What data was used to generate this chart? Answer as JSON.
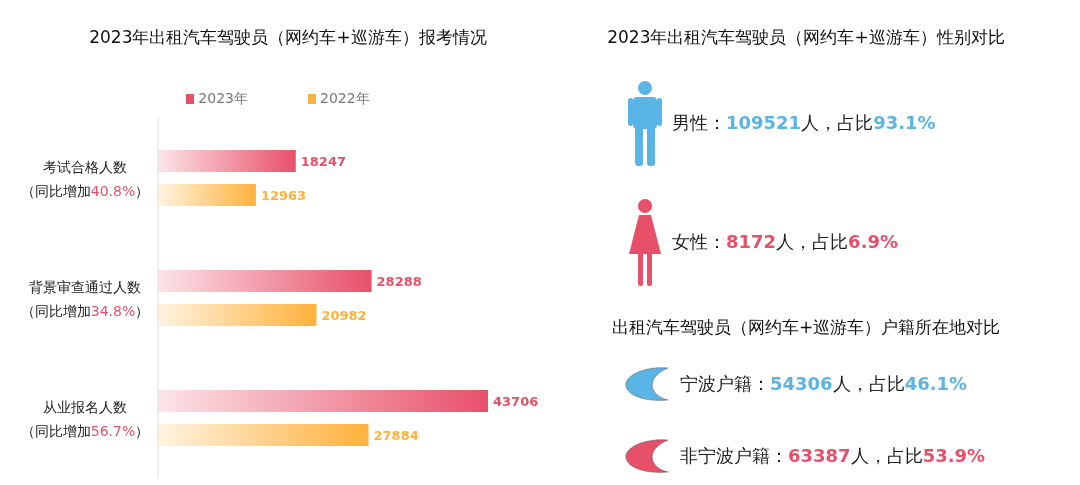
{
  "chart_data": [
    {
      "type": "bar",
      "orientation": "horizontal",
      "title": "2023年出租汽车驾驶员（网约车+巡游车）报考情况",
      "categories": [
        "考试合格人数",
        "背景审查通过人数",
        "从业报名人数"
      ],
      "annotations": [
        "（同比增加40.8%）",
        "（同比增加34.8%）",
        "（同比增加56.7%）"
      ],
      "series": [
        {
          "name": "2023年",
          "color": "#e8506a",
          "values": [
            18247,
            28288,
            43706
          ]
        },
        {
          "name": "2022年",
          "color": "#ffb13b",
          "values": [
            12963,
            20982,
            27884
          ]
        }
      ],
      "data_labels": true,
      "legend": "top"
    },
    {
      "type": "other",
      "title": "2023年出租汽车驾驶员（网约车+巡游车）性别对比",
      "annotations": [
        "男性：109521人，占比93.1%",
        "女性：8172人，占比6.9%"
      ],
      "colors": [
        "#5ab4e5",
        "#e8506a"
      ]
    },
    {
      "type": "other",
      "title": "出租汽车驾驶员（网约车+巡游车）户籍所在地对比",
      "annotations": [
        "宁波户籍：54306人，占比46.1%",
        "非宁波户籍：63387人，占比53.9%"
      ],
      "colors": [
        "#5ab4e5",
        "#e8506a"
      ]
    }
  ]
}
